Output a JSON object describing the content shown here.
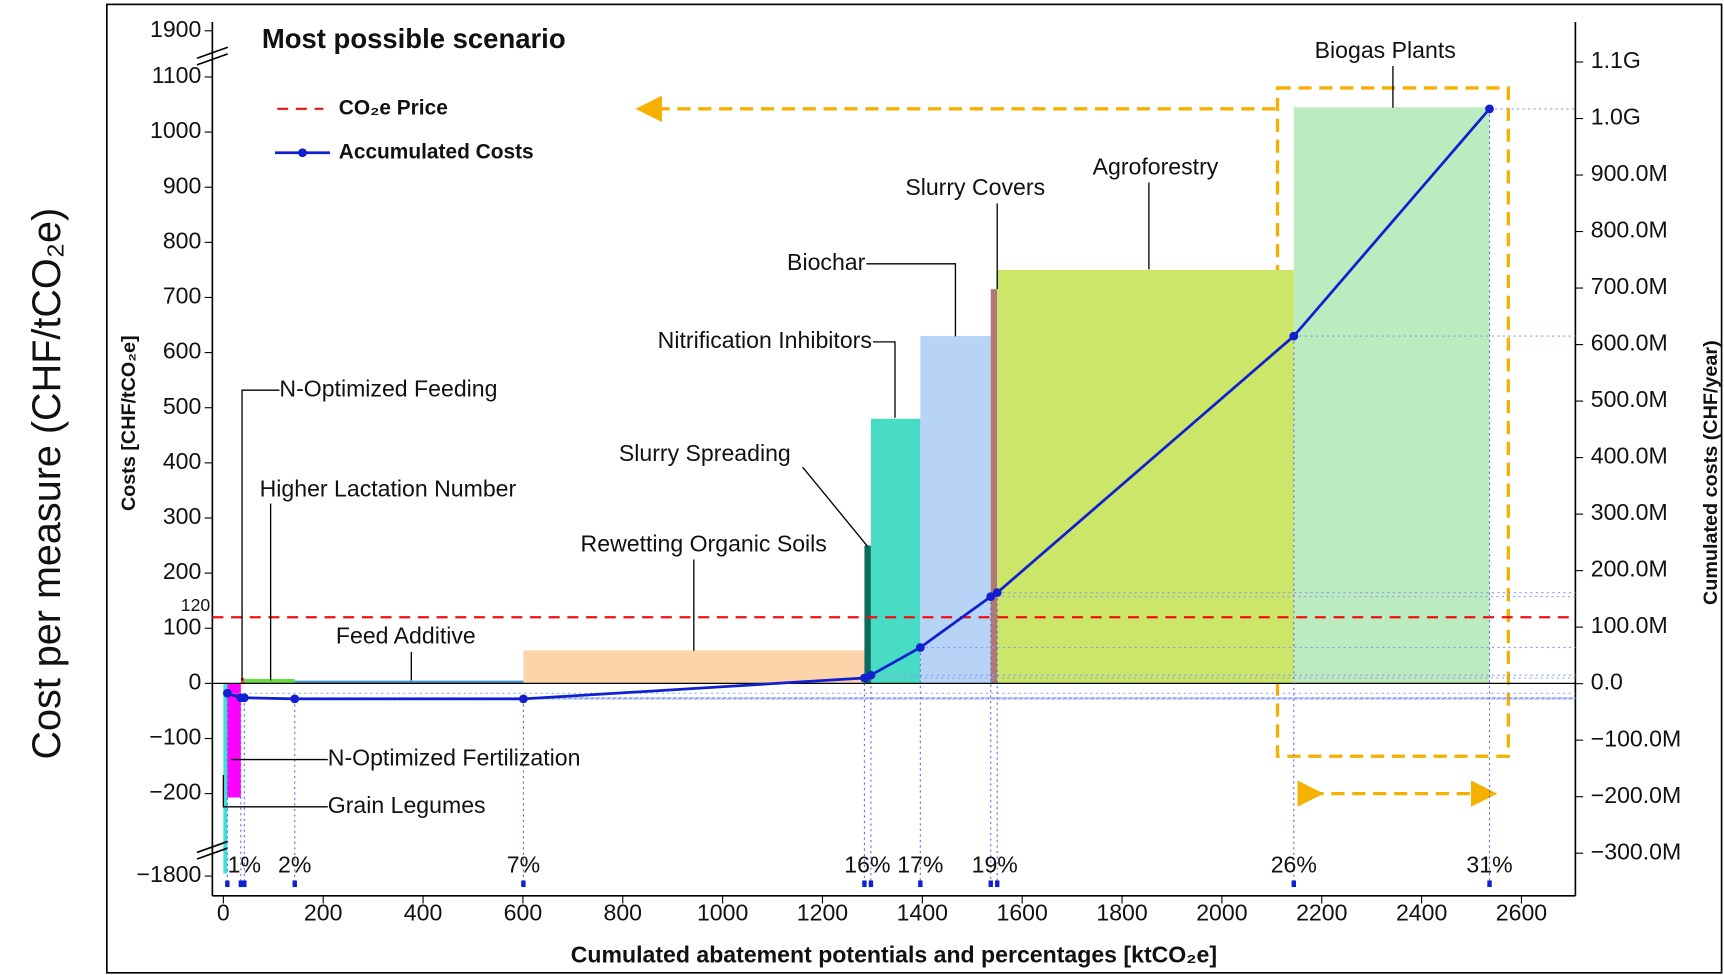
{
  "chart_data": {
    "type": "macc",
    "title": "Most possible scenario",
    "outer_label": "Cost per measure (CHF/tCO₂e)",
    "ylabel": "Costs [CHF/tCO₂e]",
    "y2label": "Cumulated costs (CHF/year)",
    "xlabel": "Cumulated abatement potentials and percentages [ktCO₂e]",
    "legend": "upper left",
    "xlim": [
      -22,
      2708
    ],
    "xticks": [
      0,
      200,
      400,
      600,
      800,
      1000,
      1200,
      1400,
      1600,
      1800,
      2000,
      2200,
      2400,
      2600
    ],
    "ylim": [
      -1800,
      1900
    ],
    "ybreaks": [
      -200,
      1100
    ],
    "yticks": [
      {
        "value": -1800,
        "label": "−1800"
      },
      {
        "value": -200,
        "label": "−200"
      },
      {
        "value": -100,
        "label": "−100"
      },
      0,
      100,
      200,
      300,
      400,
      500,
      600,
      700,
      800,
      900,
      1000,
      1100,
      1900
    ],
    "y2lim": [
      -375500000,
      1200000000
    ],
    "y2ticks": [
      {
        "value": -300000000,
        "label": "−300.0M"
      },
      {
        "value": -200000000,
        "label": "−200.0M"
      },
      {
        "value": -100000000,
        "label": "−100.0M"
      },
      {
        "value": 0,
        "label": "0.0"
      },
      {
        "value": 100000000,
        "label": "100.0M"
      },
      {
        "value": 200000000,
        "label": "200.0M"
      },
      {
        "value": 300000000,
        "label": "300.0M"
      },
      {
        "value": 400000000,
        "label": "400.0M"
      },
      {
        "value": 500000000,
        "label": "500.0M"
      },
      {
        "value": 600000000,
        "label": "600.0M"
      },
      {
        "value": 700000000,
        "label": "700.0M"
      },
      {
        "value": 800000000,
        "label": "800.0M"
      },
      {
        "value": 900000000,
        "label": "900.0M"
      },
      {
        "value": 1000000000,
        "label": "1.0G"
      },
      {
        "value": 1100000000,
        "label": "1.1G"
      }
    ],
    "categories": [
      "Grain Legumes",
      "N-Optimized Fertilization",
      "N-Optimized Feeding",
      "Higher Lactation Number",
      "Feed Additive",
      "Rewetting Organic Soils",
      "Slurry Spreading",
      "Nitrification Inhibitors",
      "Biochar",
      "Slurry Covers",
      "Agroforestry",
      "Biogas Plants"
    ],
    "x_start": [
      0,
      8,
      35,
      42,
      143,
      601,
      1284,
      1297,
      1396,
      1537,
      1550,
      2144
    ],
    "x_end": [
      8,
      35,
      42,
      143,
      601,
      1284,
      1297,
      1396,
      1537,
      1550,
      2144,
      2536
    ],
    "values": [
      -1750,
      -275,
      10,
      8,
      5,
      60,
      250,
      480,
      630,
      715,
      750,
      1045
    ],
    "colors": [
      "#3ee0dc",
      "#ff00ff",
      "#d84a4a",
      "#66dd44",
      "#3a9ad9",
      "#fdd3aa",
      "#0b6b5e",
      "#48dcc4",
      "#b7d3f5",
      "#b07a70",
      "#cce66a",
      "#bdebc0"
    ],
    "price": {
      "name": "CO₂e Price",
      "value": 120,
      "color": "#ee1111"
    },
    "accumulated": {
      "name": "Accumulated Costs",
      "color": "#1020d0",
      "axis": "y2",
      "x": [
        8,
        35,
        42,
        143,
        601,
        1284,
        1297,
        1396,
        1537,
        1550,
        2144,
        2536
      ],
      "values": [
        -17000000,
        -25000000,
        -25000000,
        -27000000,
        -27000000,
        10000000,
        15000000,
        64000000,
        154000000,
        161000000,
        615000000,
        1017000000
      ]
    },
    "percent_labels": {
      "x": [
        42,
        143,
        601,
        1290,
        1396,
        1545,
        2144,
        2536
      ],
      "labels": [
        "1%",
        "2%",
        "7%",
        "16%",
        "17%",
        "19%",
        "26%",
        "31%"
      ]
    }
  }
}
